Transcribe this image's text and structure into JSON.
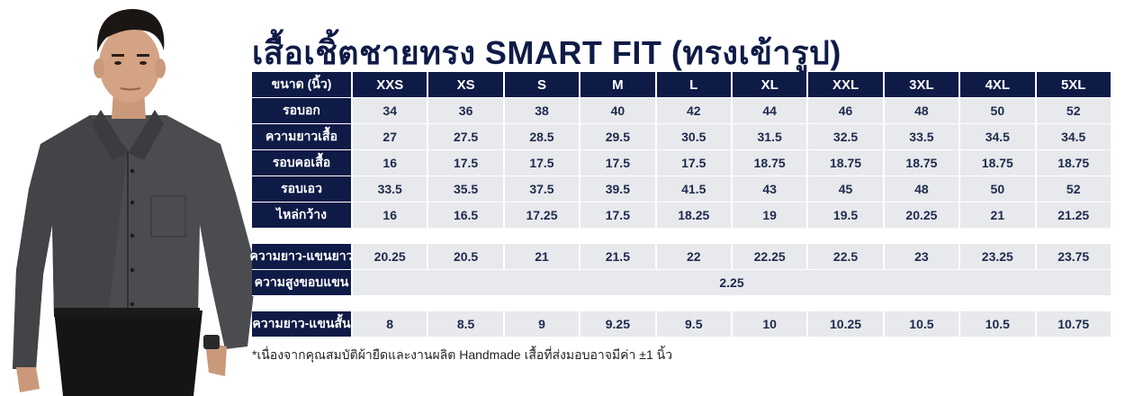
{
  "title": "เสื้อเชิ้ตชายทรง SMART FIT (ทรงเข้ารูป)",
  "header": {
    "label": "ขนาด (นิ้ว)",
    "sizes": [
      "XXS",
      "XS",
      "S",
      "M",
      "L",
      "XL",
      "XXL",
      "3XL",
      "4XL",
      "5XL"
    ]
  },
  "rows": [
    {
      "label": "รอบอก",
      "values": [
        "34",
        "36",
        "38",
        "40",
        "42",
        "44",
        "46",
        "48",
        "50",
        "52"
      ]
    },
    {
      "label": "ความยาวเสื้อ",
      "values": [
        "27",
        "27.5",
        "28.5",
        "29.5",
        "30.5",
        "31.5",
        "32.5",
        "33.5",
        "34.5",
        "34.5"
      ]
    },
    {
      "label": "รอบคอเสื้อ",
      "values": [
        "16",
        "17.5",
        "17.5",
        "17.5",
        "17.5",
        "18.75",
        "18.75",
        "18.75",
        "18.75",
        "18.75"
      ]
    },
    {
      "label": "รอบเอว",
      "values": [
        "33.5",
        "35.5",
        "37.5",
        "39.5",
        "41.5",
        "43",
        "45",
        "48",
        "50",
        "52"
      ]
    },
    {
      "label": "ไหล่กว้าง",
      "values": [
        "16",
        "16.5",
        "17.25",
        "17.5",
        "18.25",
        "19",
        "19.5",
        "20.25",
        "21",
        "21.25"
      ]
    }
  ],
  "long_sleeve": {
    "label": "ความยาว-แขนยาว",
    "values": [
      "20.25",
      "20.5",
      "21",
      "21.5",
      "22",
      "22.25",
      "22.5",
      "23",
      "23.25",
      "23.75"
    ]
  },
  "cuff": {
    "label": "ความสูงขอบแขน",
    "value": "2.25"
  },
  "short_sleeve": {
    "label": "ความยาว-แขนสั้น",
    "values": [
      "8",
      "8.5",
      "9",
      "9.25",
      "9.5",
      "10",
      "10.25",
      "10.5",
      "10.5",
      "10.75"
    ]
  },
  "footnote": "*เนื่องจากคุณสมบัติผ้ายืดและงานผลิต Handmade เสื้อที่ส่งมอบอาจมีค่า ±1 นิ้ว",
  "colors": {
    "navy": "#0f1b47",
    "cell_bg": "#e8e9ec"
  }
}
